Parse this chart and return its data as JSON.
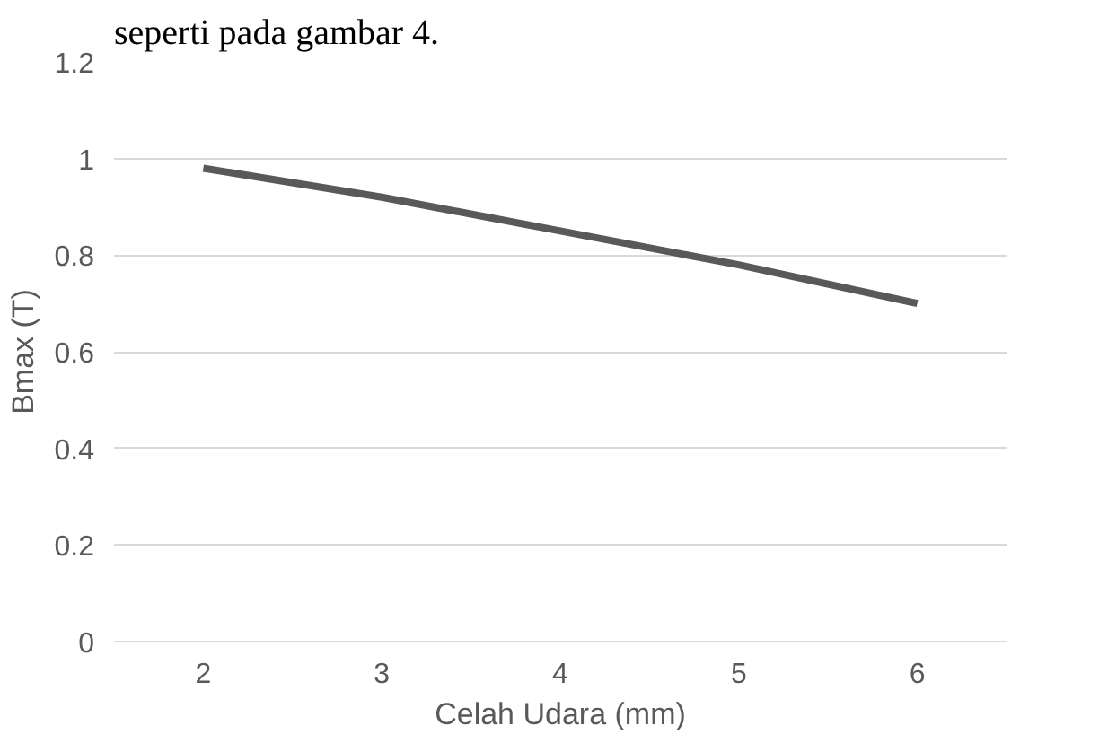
{
  "chart_data": {
    "type": "line",
    "xlabel": "Celah Udara (mm)",
    "ylabel": "Bmax (T)",
    "annotations": [
      "seperti pada gambar 4."
    ],
    "categories": [
      "2",
      "3",
      "4",
      "5",
      "6"
    ],
    "series": [
      {
        "color": "#595959",
        "values": [
          0.98,
          0.92,
          0.85,
          0.78,
          0.7
        ]
      }
    ],
    "ylim": [
      0,
      1.2
    ],
    "yticks": [
      0,
      0.2,
      0.4,
      0.6,
      0.8,
      1,
      1.2
    ],
    "grid": "y",
    "marker": "none",
    "line_style": "solid"
  }
}
